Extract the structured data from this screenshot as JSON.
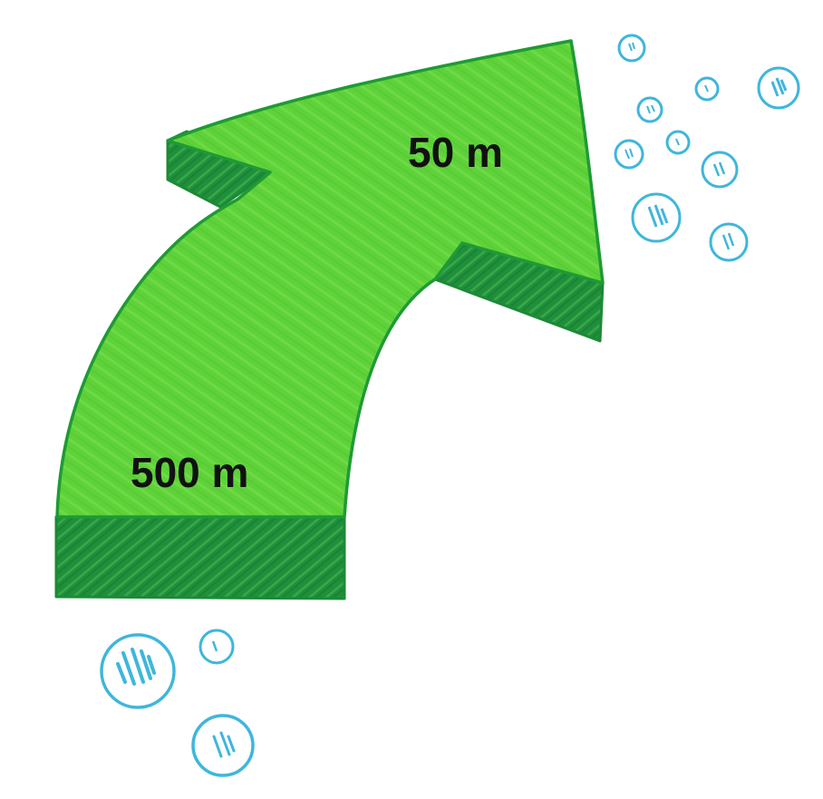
{
  "labels": {
    "top_distance": "50 m",
    "bottom_distance": "500 m"
  },
  "colors": {
    "arrow_face": "#5fd23a",
    "arrow_outline": "#1f9a35",
    "arrow_side": "#1f8f3c",
    "arrow_side_texture": "#3fae4c",
    "bubble_stroke": "#3fb6dc",
    "bubble_fill": "#ffffff",
    "bubble_scribble": "#3fb6dc",
    "text": "#111111"
  },
  "icons": {
    "arrow": "curved-arrow-up-right",
    "bubbles": "bubble-icon"
  }
}
